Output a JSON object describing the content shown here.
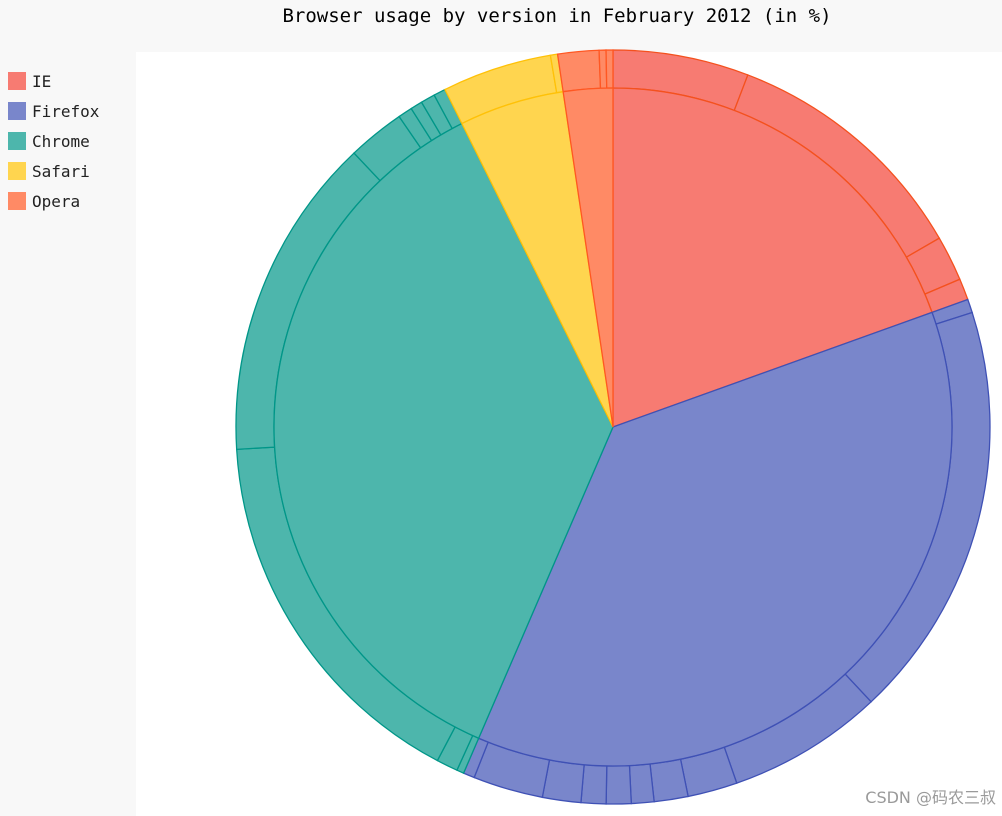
{
  "chart_data": {
    "type": "pie",
    "title": "Browser usage by version in February 2012 (in %)",
    "legend_position": "left",
    "inner_series": [
      {
        "name": "IE",
        "value": 19.1,
        "color": "#f77b72"
      },
      {
        "name": "Firefox",
        "value": 36.2,
        "color": "#7986cb"
      },
      {
        "name": "Chrome",
        "value": 35.4,
        "color": "#4db6ac"
      },
      {
        "name": "Safari",
        "value": 4.9,
        "color": "#ffd54f"
      },
      {
        "name": "Opera",
        "value": 2.3,
        "color": "#ff8a65"
      }
    ],
    "outer_series": [
      {
        "parent": "IE",
        "values": [
          5.7,
          10.6,
          1.9,
          0.9
        ]
      },
      {
        "parent": "Firefox",
        "values": [
          0.6,
          18.5,
          6.9,
          2.2,
          1.5,
          1.0,
          1.1,
          1.1,
          1.7,
          3.1,
          0.5
        ]
      },
      {
        "parent": "Chrome",
        "values": [
          0.3,
          0.9,
          16.0,
          13.6,
          2.4,
          0.6,
          0.5,
          0.6,
          0.5
        ]
      },
      {
        "parent": "Safari",
        "values": [
          4.6,
          0.3
        ]
      },
      {
        "parent": "Opera",
        "values": [
          1.8,
          0.3,
          0.3
        ]
      }
    ],
    "stroke_colors": {
      "IE": "#f4511e",
      "Firefox": "#3f51b5",
      "Chrome": "#009688",
      "Safari": "#ffc107",
      "Opera": "#ff5722"
    }
  },
  "watermark": "CSDN @码农三叔"
}
